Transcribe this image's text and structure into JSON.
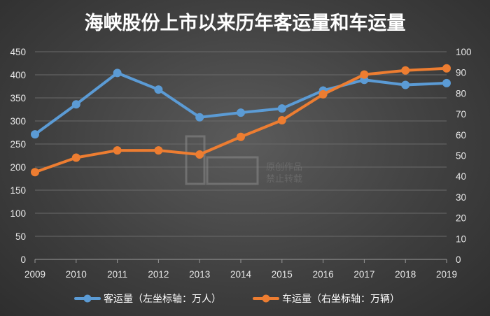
{
  "colors": {
    "passenger": "#5b9bd5",
    "vehicle": "#ed7d31",
    "grid": "#6a6a6a",
    "axis": "#9a9a9a"
  },
  "watermark": {
    "line1": "原创作品",
    "line2": "禁止转载"
  },
  "chart_data": {
    "type": "line",
    "title": "海峡股份上市以来历年客运量和车运量",
    "categories": [
      "2009",
      "2010",
      "2011",
      "2012",
      "2013",
      "2014",
      "2015",
      "2016",
      "2017",
      "2018",
      "2019"
    ],
    "y_left": {
      "min": 0,
      "max": 450,
      "step": 50,
      "ticks": [
        "0",
        "50",
        "100",
        "150",
        "200",
        "250",
        "300",
        "350",
        "400",
        "450"
      ]
    },
    "y_right": {
      "min": 0,
      "max": 100,
      "step": 10,
      "ticks": [
        "0",
        "10",
        "20",
        "30",
        "40",
        "50",
        "60",
        "70",
        "80",
        "90",
        "100"
      ]
    },
    "grid": true,
    "legend_position": "bottom",
    "series": [
      {
        "name": "客运量（左坐标轴：万人）",
        "axis": "left",
        "color": "#5b9bd5",
        "values": [
          271,
          336,
          404,
          368,
          308,
          318,
          327,
          366,
          389,
          378,
          382
        ]
      },
      {
        "name": "车运量（右坐标轴：万辆）",
        "axis": "right",
        "color": "#ed7d31",
        "values": [
          42,
          49,
          52.5,
          52.5,
          50.5,
          59,
          67,
          79.5,
          89,
          91,
          92
        ]
      }
    ]
  }
}
